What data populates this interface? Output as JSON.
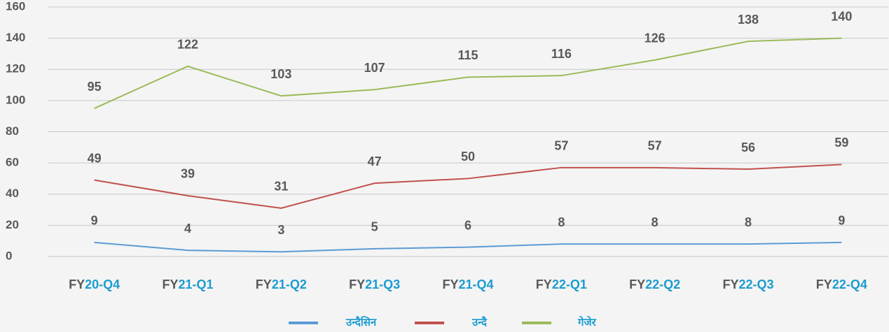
{
  "chart_data": {
    "type": "line",
    "categories": [
      "FY20-Q4",
      "FY21-Q1",
      "FY21-Q2",
      "FY21-Q3",
      "FY21-Q4",
      "FY22-Q1",
      "FY22-Q2",
      "FY22-Q3",
      "FY22-Q4"
    ],
    "series": [
      {
        "name": "उन्दैसिन",
        "color": "#5b9bd5",
        "values": [
          9,
          4,
          3,
          5,
          6,
          8,
          8,
          8,
          9
        ]
      },
      {
        "name": "उन्दै",
        "color": "#c0504d",
        "values": [
          49,
          39,
          31,
          47,
          50,
          57,
          57,
          56,
          59
        ]
      },
      {
        "name": "गेजेर",
        "color": "#9bbb59",
        "values": [
          95,
          122,
          103,
          107,
          115,
          116,
          126,
          138,
          140
        ]
      }
    ],
    "ylim": [
      0,
      160
    ],
    "yticks": [
      0,
      20,
      40,
      60,
      80,
      100,
      120,
      140,
      160
    ],
    "grid": true,
    "legend": "bottom"
  }
}
